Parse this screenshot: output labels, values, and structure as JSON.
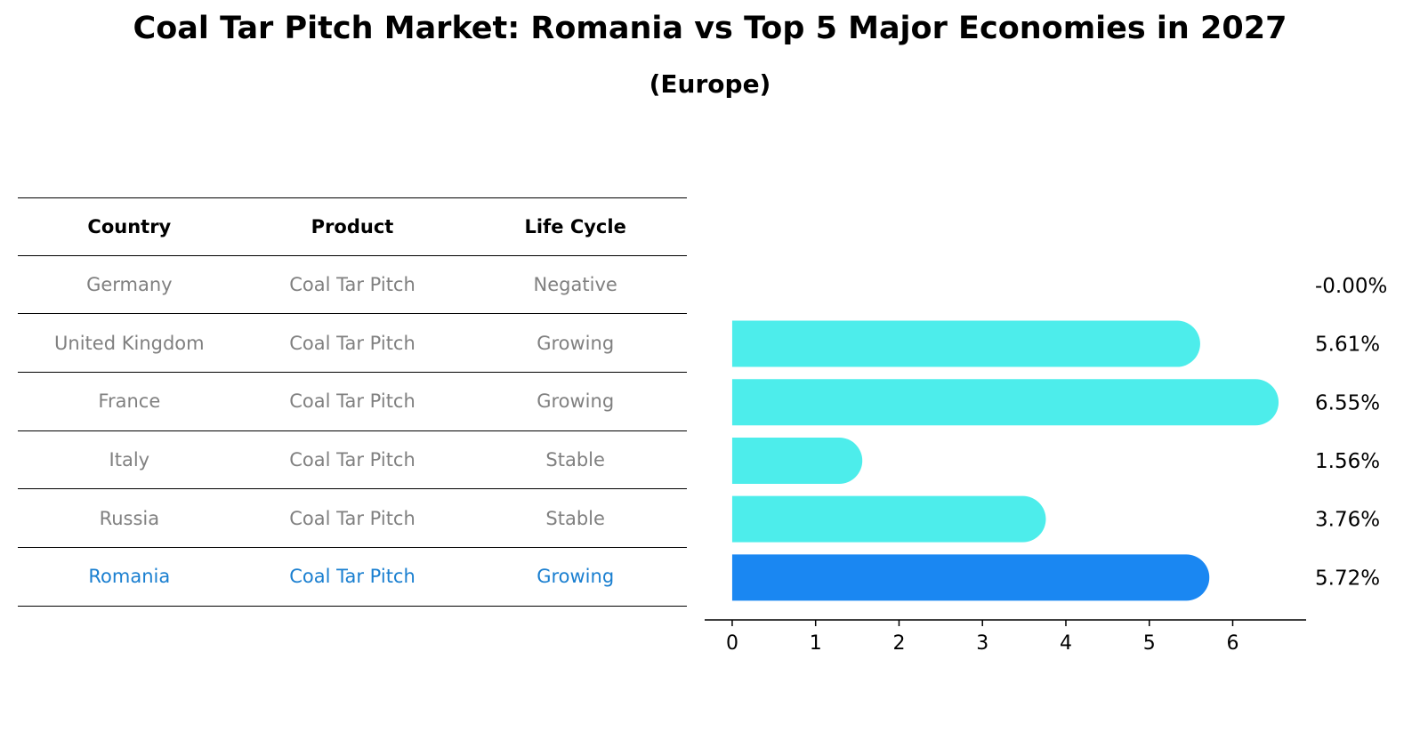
{
  "title": "Coal Tar Pitch Market: Romania vs Top 5 Major Economies in 2027",
  "subtitle": "(Europe)",
  "table": {
    "headers": [
      "Country",
      "Product",
      "Life Cycle"
    ],
    "rows": [
      {
        "country": "Germany",
        "product": "Coal Tar Pitch",
        "life_cycle": "Negative"
      },
      {
        "country": "United Kingdom",
        "product": "Coal Tar Pitch",
        "life_cycle": "Growing"
      },
      {
        "country": "France",
        "product": "Coal Tar Pitch",
        "life_cycle": "Growing"
      },
      {
        "country": "Italy",
        "product": "Coal Tar Pitch",
        "life_cycle": "Stable"
      },
      {
        "country": "Russia",
        "product": "Coal Tar Pitch",
        "life_cycle": "Stable"
      },
      {
        "country": "Romania",
        "product": "Coal Tar Pitch",
        "life_cycle": "Growing"
      }
    ]
  },
  "colors": {
    "bar": "#4dedeb",
    "highlight_bar": "#1a87f2",
    "highlight_text": "#1a7fd0",
    "muted_text": "#808080"
  },
  "chart_data": {
    "type": "bar",
    "orientation": "horizontal",
    "categories": [
      "Germany",
      "United Kingdom",
      "France",
      "Italy",
      "Russia",
      "Romania"
    ],
    "values": [
      -0.0,
      5.61,
      6.55,
      1.56,
      3.76,
      5.72
    ],
    "value_labels": [
      "-0.00%",
      "5.61%",
      "6.55%",
      "1.56%",
      "3.76%",
      "5.72%"
    ],
    "highlight": "Romania",
    "xlim": [
      -0.33,
      6.88
    ],
    "xticks": [
      0,
      1,
      2,
      3,
      4,
      5,
      6
    ],
    "grid": false
  }
}
